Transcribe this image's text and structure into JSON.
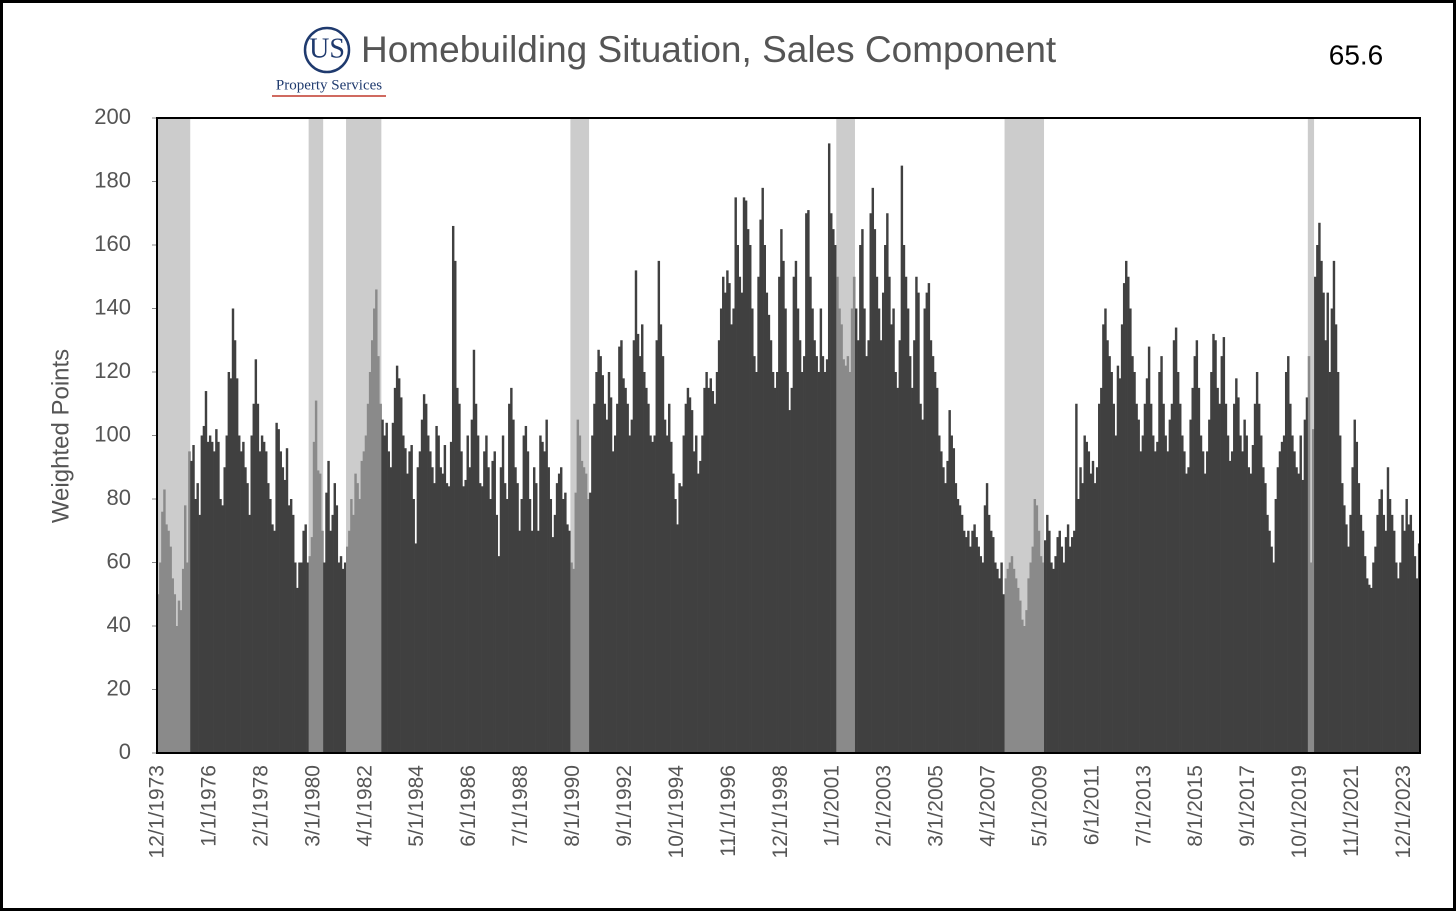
{
  "chart_data": {
    "type": "bar",
    "title": "Homebuilding Situation, Sales Component",
    "annotation": "65.6",
    "logo_text": "US",
    "logo_subtext": "Property Services",
    "y_label": "Weighted Points",
    "color": "#404040",
    "shade_color": "#b1b1b1",
    "ylim": [
      0,
      200
    ],
    "yticks": [
      0,
      20,
      40,
      60,
      80,
      100,
      120,
      140,
      160,
      180,
      200
    ],
    "shaded_periods": [
      [
        0,
        15
      ],
      [
        73,
        79
      ],
      [
        91,
        107
      ],
      [
        199,
        207
      ],
      [
        327,
        335
      ],
      [
        408,
        426
      ],
      [
        554,
        556
      ]
    ],
    "categories": [
      "12/1/1973",
      null,
      null,
      null,
      null,
      null,
      null,
      null,
      null,
      null,
      null,
      null,
      null,
      null,
      null,
      null,
      null,
      null,
      null,
      null,
      null,
      null,
      null,
      null,
      null,
      "1/1/1976",
      null,
      null,
      null,
      null,
      null,
      null,
      null,
      null,
      null,
      null,
      null,
      null,
      null,
      null,
      null,
      null,
      null,
      null,
      null,
      null,
      null,
      null,
      null,
      null,
      "2/1/1978",
      null,
      null,
      null,
      null,
      null,
      null,
      null,
      null,
      null,
      null,
      null,
      null,
      null,
      null,
      null,
      null,
      null,
      null,
      null,
      null,
      null,
      null,
      null,
      null,
      "3/1/1980",
      null,
      null,
      null,
      null,
      null,
      null,
      null,
      null,
      null,
      null,
      null,
      null,
      null,
      null,
      null,
      null,
      null,
      null,
      null,
      null,
      null,
      null,
      null,
      null,
      "4/1/1982",
      null,
      null,
      null,
      null,
      null,
      null,
      null,
      null,
      null,
      null,
      null,
      null,
      null,
      null,
      null,
      null,
      null,
      null,
      null,
      null,
      null,
      null,
      null,
      null,
      "5/1/1984",
      null,
      null,
      null,
      null,
      null,
      null,
      null,
      null,
      null,
      null,
      null,
      null,
      null,
      null,
      null,
      null,
      null,
      null,
      null,
      null,
      null,
      null,
      null,
      null,
      "6/1/1986",
      null,
      null,
      null,
      null,
      null,
      null,
      null,
      null,
      null,
      null,
      null,
      null,
      null,
      null,
      null,
      null,
      null,
      null,
      null,
      null,
      null,
      null,
      null,
      null,
      "7/1/1988",
      null,
      null,
      null,
      null,
      null,
      null,
      null,
      null,
      null,
      null,
      null,
      null,
      null,
      null,
      null,
      null,
      null,
      null,
      null,
      null,
      null,
      null,
      null,
      null,
      "8/1/1990",
      null,
      null,
      null,
      null,
      null,
      null,
      null,
      null,
      null,
      null,
      null,
      null,
      null,
      null,
      null,
      null,
      null,
      null,
      null,
      null,
      null,
      null,
      null,
      null,
      "9/1/1992",
      null,
      null,
      null,
      null,
      null,
      null,
      null,
      null,
      null,
      null,
      null,
      null,
      null,
      null,
      null,
      null,
      null,
      null,
      null,
      null,
      null,
      null,
      null,
      null,
      "10/1/1994",
      null,
      null,
      null,
      null,
      null,
      null,
      null,
      null,
      null,
      null,
      null,
      null,
      null,
      null,
      null,
      null,
      null,
      null,
      null,
      null,
      null,
      null,
      null,
      null,
      "11/1/1996",
      null,
      null,
      null,
      null,
      null,
      null,
      null,
      null,
      null,
      null,
      null,
      null,
      null,
      null,
      null,
      null,
      null,
      null,
      null,
      null,
      null,
      null,
      null,
      null,
      "12/1/1998",
      null,
      null,
      null,
      null,
      null,
      null,
      null,
      null,
      null,
      null,
      null,
      null,
      null,
      null,
      null,
      null,
      null,
      null,
      null,
      null,
      null,
      null,
      null,
      null,
      "1/1/2001",
      null,
      null,
      null,
      null,
      null,
      null,
      null,
      null,
      null,
      null,
      null,
      null,
      null,
      null,
      null,
      null,
      null,
      null,
      null,
      null,
      null,
      null,
      null,
      null,
      "2/1/2003",
      null,
      null,
      null,
      null,
      null,
      null,
      null,
      null,
      null,
      null,
      null,
      null,
      null,
      null,
      null,
      null,
      null,
      null,
      null,
      null,
      null,
      null,
      null,
      null,
      "3/1/2005",
      null,
      null,
      null,
      null,
      null,
      null,
      null,
      null,
      null,
      null,
      null,
      null,
      null,
      null,
      null,
      null,
      null,
      null,
      null,
      null,
      null,
      null,
      null,
      null,
      "4/1/2007",
      null,
      null,
      null,
      null,
      null,
      null,
      null,
      null,
      null,
      null,
      null,
      null,
      null,
      null,
      null,
      null,
      null,
      null,
      null,
      null,
      null,
      null,
      null,
      null,
      "5/1/2009",
      null,
      null,
      null,
      null,
      null,
      null,
      null,
      null,
      null,
      null,
      null,
      null,
      null,
      null,
      null,
      null,
      null,
      null,
      null,
      null,
      null,
      null,
      null,
      null,
      "6/1/2011",
      null,
      null,
      null,
      null,
      null,
      null,
      null,
      null,
      null,
      null,
      null,
      null,
      null,
      null,
      null,
      null,
      null,
      null,
      null,
      null,
      null,
      null,
      null,
      null,
      "7/1/2013",
      null,
      null,
      null,
      null,
      null,
      null,
      null,
      null,
      null,
      null,
      null,
      null,
      null,
      null,
      null,
      null,
      null,
      null,
      null,
      null,
      null,
      null,
      null,
      null,
      "8/1/2015",
      null,
      null,
      null,
      null,
      null,
      null,
      null,
      null,
      null,
      null,
      null,
      null,
      null,
      null,
      null,
      null,
      null,
      null,
      null,
      null,
      null,
      null,
      null,
      null,
      "9/1/2017",
      null,
      null,
      null,
      null,
      null,
      null,
      null,
      null,
      null,
      null,
      null,
      null,
      null,
      null,
      null,
      null,
      null,
      null,
      null,
      null,
      null,
      null,
      null,
      null,
      "10/1/2019",
      null,
      null,
      null,
      null,
      null,
      null,
      null,
      null,
      null,
      null,
      null,
      null,
      null,
      null,
      null,
      null,
      null,
      null,
      null,
      null,
      null,
      null,
      null,
      null,
      "11/1/2021",
      null,
      null,
      null,
      null,
      null,
      null,
      null,
      null,
      null,
      null,
      null,
      null,
      null,
      null,
      null,
      null,
      null,
      null,
      null,
      null,
      null,
      null,
      null,
      null,
      "12/1/2023",
      null,
      null,
      null,
      null,
      null,
      null,
      null
    ],
    "values": [
      50,
      60,
      76,
      83,
      72,
      70,
      65,
      55,
      50,
      40,
      48,
      45,
      58,
      78,
      60,
      95,
      92,
      97,
      80,
      85,
      75,
      100,
      103,
      114,
      98,
      100,
      98,
      95,
      102,
      98,
      80,
      78,
      90,
      100,
      120,
      118,
      140,
      130,
      118,
      100,
      95,
      98,
      90,
      85,
      75,
      100,
      110,
      124,
      110,
      95,
      100,
      98,
      95,
      85,
      80,
      72,
      70,
      104,
      102,
      95,
      90,
      86,
      96,
      78,
      80,
      75,
      60,
      52,
      60,
      60,
      70,
      72,
      60,
      62,
      68,
      98,
      111,
      89,
      88,
      70,
      60,
      82,
      92,
      70,
      75,
      85,
      78,
      60,
      62,
      58,
      60,
      65,
      70,
      80,
      75,
      88,
      85,
      80,
      92,
      95,
      100,
      110,
      120,
      130,
      140,
      146,
      125,
      110,
      105,
      100,
      104,
      95,
      90,
      104,
      115,
      122,
      118,
      112,
      100,
      96,
      88,
      95,
      97,
      80,
      66,
      90,
      95,
      105,
      113,
      110,
      100,
      95,
      90,
      85,
      103,
      100,
      90,
      88,
      97,
      85,
      84,
      98,
      166,
      155,
      115,
      110,
      95,
      84,
      86,
      100,
      90,
      105,
      127,
      110,
      100,
      85,
      84,
      95,
      100,
      90,
      80,
      92,
      95,
      75,
      62,
      90,
      100,
      85,
      80,
      110,
      115,
      105,
      90,
      85,
      70,
      80,
      100,
      103,
      95,
      80,
      70,
      90,
      85,
      70,
      100,
      98,
      95,
      105,
      90,
      80,
      68,
      75,
      85,
      88,
      90,
      80,
      82,
      72,
      70,
      60,
      58,
      82,
      105,
      100,
      92,
      90,
      88,
      80,
      82,
      100,
      110,
      120,
      127,
      125,
      119,
      110,
      105,
      120,
      112,
      95,
      100,
      110,
      128,
      130,
      118,
      115,
      110,
      100,
      105,
      130,
      152,
      132,
      125,
      135,
      120,
      115,
      110,
      100,
      98,
      100,
      130,
      155,
      135,
      125,
      105,
      100,
      110,
      98,
      88,
      80,
      72,
      85,
      84,
      100,
      110,
      115,
      112,
      108,
      95,
      100,
      88,
      92,
      100,
      115,
      120,
      115,
      118,
      114,
      110,
      120,
      130,
      140,
      150,
      145,
      152,
      148,
      135,
      140,
      175,
      160,
      150,
      145,
      175,
      174,
      165,
      160,
      140,
      125,
      120,
      150,
      168,
      178,
      160,
      145,
      138,
      130,
      120,
      115,
      120,
      150,
      165,
      155,
      140,
      120,
      108,
      115,
      150,
      155,
      140,
      130,
      120,
      125,
      170,
      171,
      150,
      140,
      130,
      125,
      120,
      140,
      125,
      120,
      124,
      192,
      170,
      165,
      160,
      150,
      140,
      135,
      124,
      122,
      125,
      120,
      140,
      150,
      140,
      130,
      160,
      165,
      140,
      125,
      130,
      170,
      178,
      165,
      150,
      140,
      130,
      145,
      160,
      170,
      150,
      135,
      140,
      120,
      115,
      130,
      185,
      160,
      150,
      140,
      125,
      115,
      130,
      150,
      145,
      110,
      105,
      140,
      145,
      148,
      130,
      125,
      120,
      115,
      100,
      95,
      90,
      85,
      92,
      108,
      100,
      96,
      85,
      80,
      78,
      75,
      70,
      68,
      70,
      65,
      70,
      72,
      68,
      65,
      62,
      60,
      78,
      85,
      75,
      70,
      68,
      60,
      58,
      55,
      60,
      50,
      55,
      58,
      60,
      62,
      58,
      55,
      52,
      48,
      42,
      40,
      45,
      55,
      60,
      65,
      80,
      78,
      70,
      62,
      60,
      67,
      75,
      70,
      60,
      58,
      62,
      68,
      70,
      65,
      60,
      68,
      72,
      65,
      68,
      70,
      110,
      80,
      90,
      85,
      100,
      98,
      95,
      88,
      92,
      85,
      90,
      110,
      115,
      135,
      140,
      130,
      125,
      120,
      110,
      100,
      122,
      118,
      135,
      148,
      155,
      150,
      140,
      125,
      120,
      110,
      105,
      95,
      100,
      110,
      118,
      128,
      110,
      100,
      95,
      98,
      120,
      125,
      110,
      100,
      95,
      105,
      110,
      130,
      134,
      120,
      110,
      100,
      95,
      88,
      90,
      105,
      115,
      125,
      130,
      115,
      100,
      95,
      88,
      95,
      105,
      120,
      132,
      130,
      115,
      110,
      125,
      131,
      110,
      100,
      92,
      95,
      110,
      118,
      112,
      100,
      95,
      105,
      100,
      90,
      88,
      97,
      110,
      120,
      110,
      100,
      90,
      85,
      75,
      70,
      65,
      60,
      80,
      90,
      95,
      98,
      100,
      120,
      125,
      110,
      100,
      95,
      90,
      88,
      100,
      86,
      105,
      112,
      125,
      60,
      102,
      150,
      160,
      167,
      155,
      145,
      130,
      145,
      120,
      140,
      155,
      135,
      120,
      100,
      85,
      78,
      72,
      65,
      75,
      90,
      105,
      98,
      85,
      75,
      70,
      62,
      55,
      53,
      52,
      60,
      65,
      75,
      80,
      83,
      75,
      70,
      90,
      80,
      75,
      70,
      60,
      55,
      60,
      75,
      70,
      80,
      72,
      75,
      70,
      62,
      55,
      66
    ]
  }
}
